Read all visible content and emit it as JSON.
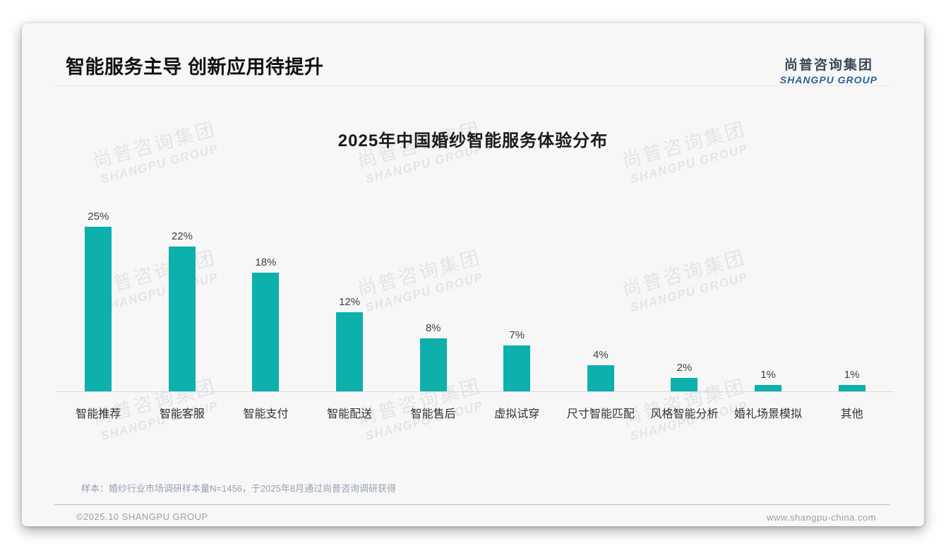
{
  "page": {
    "title": "智能服务主导 创新应用待提升",
    "logo": {
      "cn": "尚普咨询集团",
      "en": "SHANGPU GROUP"
    },
    "watermark": {
      "cn": "尚普咨询集团",
      "en": "SHANGPU GROUP"
    },
    "footnote": "样本：婚纱行业市场调研样本量N=1456，于2025年8月通过尚普咨询调研获得",
    "footer_left": "©2025.10 SHANGPU GROUP",
    "footer_right": "www.shangpu-china.com"
  },
  "colors": {
    "bar": "#0db0aa",
    "logo_cn": "#3c4858",
    "logo_en": "#2f5f9e"
  },
  "chart_data": {
    "type": "bar",
    "title": "2025年中国婚纱智能服务体验分布",
    "categories": [
      "智能推荐",
      "智能客服",
      "智能支付",
      "智能配送",
      "智能售后",
      "虚拟试穿",
      "尺寸智能匹配",
      "风格智能分析",
      "婚礼场景模拟",
      "其他"
    ],
    "values": [
      25,
      22,
      18,
      12,
      8,
      7,
      4,
      2,
      1,
      1
    ],
    "unit": "%",
    "data_labels": true,
    "grid": false,
    "legend": "none",
    "xlabel": "",
    "ylabel": "",
    "ylim": [
      0,
      25
    ],
    "bar_color": "#0db0aa"
  }
}
